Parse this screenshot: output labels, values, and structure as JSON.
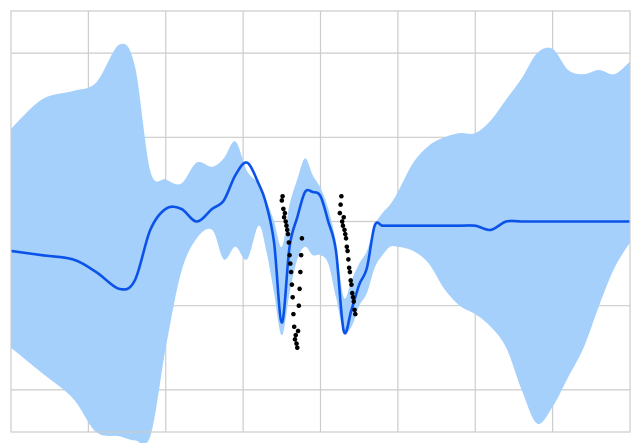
{
  "chart_data": {
    "type": "line",
    "title": "",
    "xlabel": "",
    "ylabel": "",
    "xlim": [
      -4,
      4
    ],
    "ylim": [
      -2.5,
      2.5
    ],
    "grid": true,
    "x_gridlines": [
      -3,
      -2,
      -1,
      0,
      1,
      2,
      3
    ],
    "y_gridlines": [
      -2,
      -1,
      0,
      1,
      2
    ],
    "colors": {
      "band": "#a4d0fb",
      "mean": "#0b52e8",
      "points": "#000000",
      "grid": "#cccccc"
    },
    "series": [
      {
        "role": "confidence-band",
        "x": [
          -4.0,
          -3.6,
          -3.2,
          -2.9,
          -2.6,
          -2.4,
          -2.2,
          -2.0,
          -1.8,
          -1.6,
          -1.4,
          -1.25,
          -1.1,
          -0.95,
          -0.8,
          -0.7,
          -0.6,
          -0.5,
          -0.4,
          -0.3,
          -0.2,
          -0.1,
          0.0,
          0.1,
          0.2,
          0.3,
          0.4,
          0.5,
          0.6,
          0.7,
          0.8,
          0.9,
          1.0,
          1.2,
          1.4,
          1.6,
          1.8,
          2.0,
          2.2,
          2.4,
          2.6,
          2.8,
          3.0,
          3.2,
          3.4,
          3.6,
          3.8,
          4.0
        ],
        "upper": [
          1.1,
          1.45,
          1.55,
          1.65,
          2.1,
          1.85,
          0.6,
          0.5,
          0.45,
          0.7,
          0.65,
          0.75,
          0.95,
          0.6,
          0.45,
          0.25,
          0.0,
          -0.3,
          0.2,
          0.5,
          0.75,
          0.55,
          0.4,
          0.15,
          -0.25,
          -0.9,
          -0.7,
          -0.5,
          -0.35,
          -0.05,
          0.1,
          0.2,
          0.35,
          0.7,
          0.9,
          1.0,
          1.05,
          1.05,
          1.2,
          1.45,
          1.7,
          2.0,
          2.05,
          1.8,
          1.75,
          1.8,
          1.75,
          1.9
        ],
        "lower": [
          -1.5,
          -1.8,
          -2.1,
          -2.5,
          -2.55,
          -2.6,
          -2.55,
          -1.5,
          -0.6,
          -0.2,
          -0.1,
          -0.45,
          -0.3,
          -0.45,
          -0.05,
          -0.35,
          -0.85,
          -1.35,
          -0.85,
          -0.45,
          -0.3,
          -0.4,
          -0.4,
          -0.5,
          -0.9,
          -1.3,
          -1.25,
          -1.0,
          -0.85,
          -0.55,
          -0.4,
          -0.3,
          -0.3,
          -0.35,
          -0.5,
          -0.8,
          -1.0,
          -1.1,
          -1.25,
          -1.5,
          -2.0,
          -2.4,
          -2.2,
          -1.85,
          -1.5,
          -1.0,
          -0.55,
          -0.25
        ]
      },
      {
        "role": "mean",
        "x": [
          -4.0,
          -3.6,
          -3.2,
          -2.9,
          -2.6,
          -2.4,
          -2.2,
          -2.0,
          -1.8,
          -1.6,
          -1.4,
          -1.25,
          -1.1,
          -0.95,
          -0.8,
          -0.7,
          -0.6,
          -0.5,
          -0.4,
          -0.3,
          -0.2,
          -0.1,
          0.0,
          0.1,
          0.2,
          0.3,
          0.4,
          0.5,
          0.6,
          0.7,
          0.8,
          0.9,
          1.0,
          1.2,
          1.4,
          1.6,
          1.8,
          2.0,
          2.2,
          2.4,
          2.6,
          2.8,
          3.0,
          3.2,
          3.4,
          3.6,
          3.8,
          4.0
        ],
        "y": [
          -0.35,
          -0.4,
          -0.45,
          -0.6,
          -0.8,
          -0.7,
          -0.1,
          0.15,
          0.15,
          0.0,
          0.15,
          0.25,
          0.55,
          0.7,
          0.45,
          0.2,
          -0.25,
          -1.2,
          -0.3,
          0.05,
          0.35,
          0.35,
          0.3,
          0.0,
          -0.35,
          -1.3,
          -1.05,
          -0.75,
          -0.55,
          -0.05,
          -0.05,
          -0.05,
          -0.05,
          -0.05,
          -0.05,
          -0.05,
          -0.05,
          -0.05,
          -0.1,
          0.0,
          0.0,
          0.0,
          0.0,
          0.0,
          0.0,
          0.0,
          0.0,
          0.0
        ]
      },
      {
        "role": "observations",
        "x": [
          -0.5,
          -0.49,
          -0.48,
          -0.47,
          -0.46,
          -0.45,
          -0.44,
          -0.43,
          -0.42,
          -0.41,
          -0.4,
          -0.39,
          -0.38,
          -0.37,
          -0.36,
          -0.35,
          -0.34,
          -0.33,
          -0.32,
          -0.31,
          -0.3,
          -0.29,
          -0.28,
          -0.27,
          -0.26,
          -0.25,
          -0.24,
          0.25,
          0.26,
          0.27,
          0.28,
          0.29,
          0.3,
          0.31,
          0.32,
          0.33,
          0.34,
          0.35,
          0.36,
          0.37,
          0.38,
          0.39,
          0.4,
          0.41,
          0.42,
          0.43,
          0.44,
          0.45
        ],
        "y": [
          0.25,
          0.3,
          0.15,
          0.05,
          0.1,
          0.0,
          -0.05,
          -0.1,
          -0.15,
          -0.25,
          -0.4,
          -0.5,
          -0.6,
          -0.75,
          -0.9,
          -1.1,
          -1.25,
          -1.4,
          -1.35,
          -1.45,
          -1.5,
          -1.3,
          -1.0,
          -0.8,
          -0.6,
          -0.4,
          -0.2,
          0.1,
          0.2,
          0.3,
          0.0,
          -0.05,
          0.05,
          -0.1,
          -0.15,
          -0.2,
          -0.3,
          -0.35,
          -0.45,
          -0.55,
          -0.6,
          -0.7,
          -0.75,
          -0.85,
          -0.9,
          -0.95,
          -1.05,
          -1.1
        ]
      }
    ]
  }
}
